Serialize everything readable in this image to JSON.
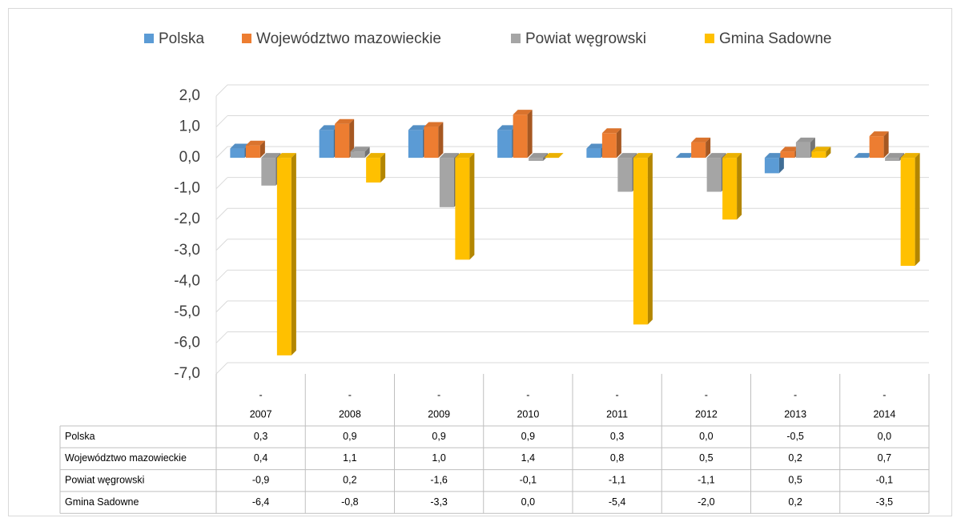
{
  "chart_data": {
    "type": "bar",
    "categories": [
      "2007",
      "2008",
      "2009",
      "2010",
      "2011",
      "2012",
      "2013",
      "2014"
    ],
    "category_upper_labels": [
      "-",
      "-",
      "-",
      "-",
      "-",
      "-",
      "-",
      "-"
    ],
    "series": [
      {
        "name": "Polska",
        "color": "#5b9bd5",
        "values": [
          0.3,
          0.9,
          0.9,
          0.9,
          0.3,
          0.0,
          -0.5,
          0.0
        ],
        "value_labels": [
          "0,3",
          "0,9",
          "0,9",
          "0,9",
          "0,3",
          "0,0",
          "-0,5",
          "0,0"
        ]
      },
      {
        "name": "Województwo mazowieckie",
        "color": "#ed7d31",
        "values": [
          0.4,
          1.1,
          1.0,
          1.4,
          0.8,
          0.5,
          0.2,
          0.7
        ],
        "value_labels": [
          "0,4",
          "1,1",
          "1,0",
          "1,4",
          "0,8",
          "0,5",
          "0,2",
          "0,7"
        ]
      },
      {
        "name": "Powiat węgrowski",
        "color": "#a5a5a5",
        "values": [
          -0.9,
          0.2,
          -1.6,
          -0.1,
          -1.1,
          -1.1,
          0.5,
          -0.1
        ],
        "value_labels": [
          "-0,9",
          "0,2",
          "-1,6",
          "-0,1",
          "-1,1",
          "-1,1",
          "0,5",
          "-0,1"
        ]
      },
      {
        "name": "Gmina Sadowne",
        "color": "#ffc000",
        "values": [
          -6.4,
          -0.8,
          -3.3,
          0.0,
          -5.4,
          -2.0,
          0.2,
          -3.5
        ],
        "value_labels": [
          "-6,4",
          "-0,8",
          "-3,3",
          "0,0",
          "-5,4",
          "-2,0",
          "0,2",
          "-3,5"
        ]
      }
    ],
    "ylim": [
      -7,
      2
    ],
    "yticks": [
      {
        "value": 2,
        "label": "2,0"
      },
      {
        "value": 1,
        "label": "1,0"
      },
      {
        "value": 0,
        "label": "0,0"
      },
      {
        "value": -1,
        "label": "-1,0"
      },
      {
        "value": -2,
        "label": "-2,0"
      },
      {
        "value": -3,
        "label": "-3,0"
      },
      {
        "value": -4,
        "label": "-4,0"
      },
      {
        "value": -5,
        "label": "-5,0"
      },
      {
        "value": -6,
        "label": "-6,0"
      },
      {
        "value": -7,
        "label": "-7,0"
      }
    ],
    "grid": true,
    "legend": "top"
  }
}
